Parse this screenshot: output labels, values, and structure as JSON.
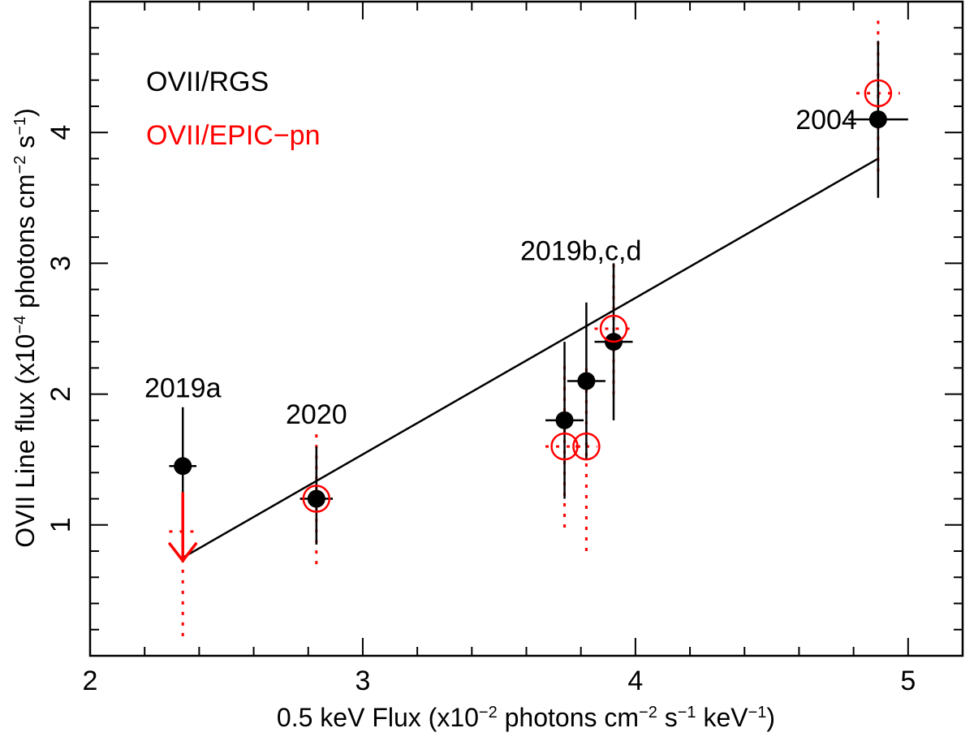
{
  "chart_data": {
    "type": "scatter",
    "xlabel_parts": [
      {
        "t": "0.5 keV Flux (x10",
        "sup": false
      },
      {
        "t": "−2",
        "sup": true
      },
      {
        "t": " photons cm",
        "sup": false
      },
      {
        "t": "−2",
        "sup": true
      },
      {
        "t": " s",
        "sup": false
      },
      {
        "t": "−1",
        "sup": true
      },
      {
        "t": " keV",
        "sup": false
      },
      {
        "t": "−1",
        "sup": true
      },
      {
        "t": ")",
        "sup": false
      }
    ],
    "ylabel_parts": [
      {
        "t": "OVII Line flux (x10",
        "sup": false
      },
      {
        "t": "−4",
        "sup": true
      },
      {
        "t": " photons cm",
        "sup": false
      },
      {
        "t": "−2",
        "sup": true
      },
      {
        "t": " s",
        "sup": false
      },
      {
        "t": "−1",
        "sup": true
      },
      {
        "t": ")",
        "sup": false
      }
    ],
    "xlim": [
      2.0,
      5.2
    ],
    "ylim": [
      0.0,
      5.0
    ],
    "x_major_ticks": [
      2,
      3,
      4,
      5
    ],
    "x_tick_labels": [
      "2",
      "3",
      "4",
      "5"
    ],
    "x_minor_step": 0.2,
    "y_major_ticks": [
      1,
      2,
      3,
      4
    ],
    "y_tick_labels": [
      "1",
      "2",
      "3",
      "4"
    ],
    "y_minor_step": 0.2,
    "legend": [
      {
        "label": "OVII/RGS",
        "color": "#000000"
      },
      {
        "label": "OVII/EPIC−pn",
        "color": "#ff0000"
      }
    ],
    "colors": {
      "rgs": "#000000",
      "epic": "#ff0000"
    },
    "fit_line": {
      "x": [
        2.34,
        4.89
      ],
      "y": [
        0.75,
        3.8
      ]
    },
    "series": [
      {
        "name": "OVII/RGS",
        "points": [
          {
            "x": 2.34,
            "y": 1.45,
            "xerr": 0.05,
            "ylo": 1.0,
            "yhi": 1.9
          },
          {
            "x": 2.83,
            "y": 1.2,
            "xerr": 0.06,
            "ylo": 0.85,
            "yhi": 1.6
          },
          {
            "x": 3.74,
            "y": 1.8,
            "xerr": 0.07,
            "ylo": 1.2,
            "yhi": 2.4
          },
          {
            "x": 3.82,
            "y": 2.1,
            "xerr": 0.07,
            "ylo": 1.5,
            "yhi": 2.7
          },
          {
            "x": 3.92,
            "y": 2.4,
            "xerr": 0.07,
            "ylo": 1.8,
            "yhi": 3.0
          },
          {
            "x": 4.89,
            "y": 4.1,
            "xerr": 0.11,
            "ylo": 3.5,
            "yhi": 4.7
          }
        ]
      },
      {
        "name": "OVII/EPIC−pn",
        "upper_limit": {
          "x": 2.34,
          "y": 0.95,
          "xerr": 0.05,
          "ylo": 0.15
        },
        "points": [
          {
            "x": 2.83,
            "y": 1.2,
            "xerr": 0.06,
            "ylo": 0.7,
            "yhi": 1.7
          },
          {
            "x": 3.74,
            "y": 1.6,
            "xerr": 0.07,
            "ylo": 0.98,
            "yhi": 2.25
          },
          {
            "x": 3.82,
            "y": 1.6,
            "xerr": 0.04,
            "ylo": 0.8,
            "yhi": 2.2
          },
          {
            "x": 3.92,
            "y": 2.5,
            "xerr": 0.07,
            "ylo": 2.0,
            "yhi": 3.0
          },
          {
            "x": 4.89,
            "y": 4.3,
            "xerr": 0.08,
            "ylo": 3.7,
            "yhi": 4.9
          }
        ]
      }
    ],
    "annotations": [
      {
        "text": "2019a",
        "x": 2.34,
        "y": 2.05
      },
      {
        "text": "2020",
        "x": 2.83,
        "y": 1.85
      },
      {
        "text": "2019b,c,d",
        "x": 3.8,
        "y": 3.1
      },
      {
        "text": "2004",
        "x": 4.7,
        "y": 4.1
      }
    ]
  }
}
